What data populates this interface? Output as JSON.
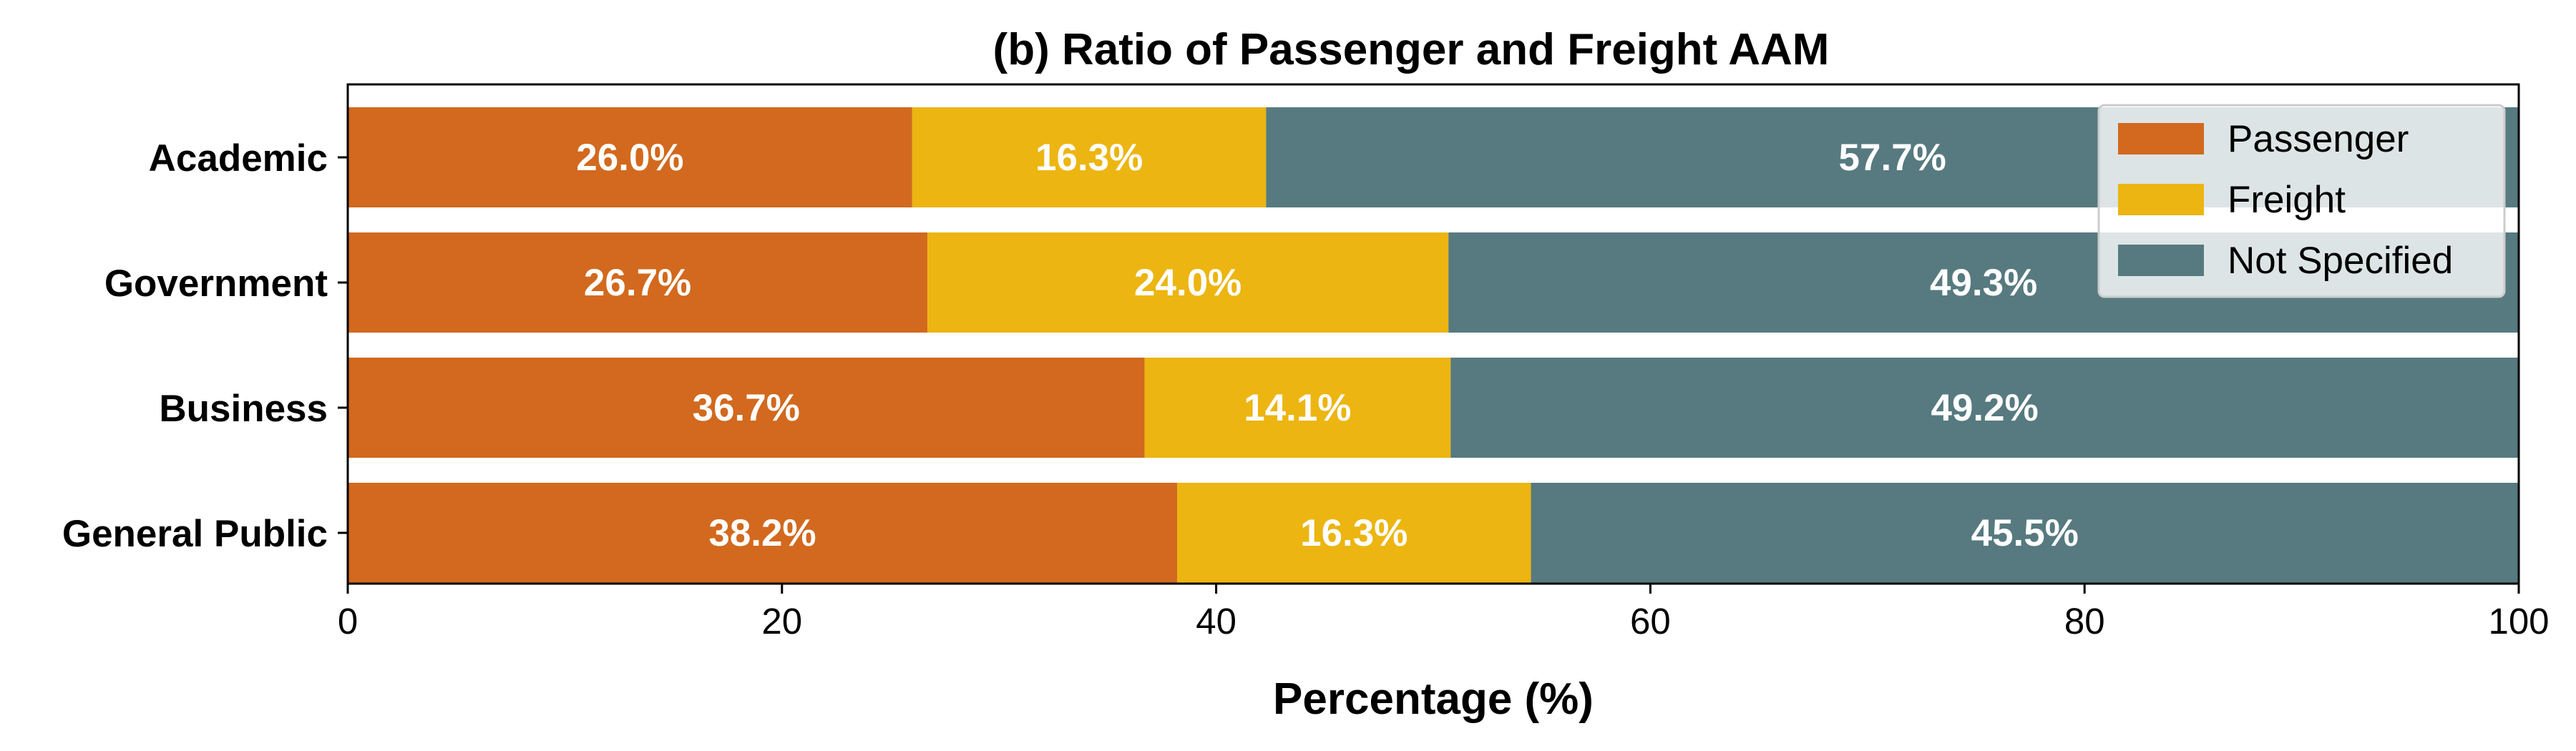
{
  "chart_data": {
    "type": "bar",
    "orientation": "horizontal",
    "stacked": true,
    "title": "(b) Ratio of Passenger and Freight AAM",
    "xlabel": "Percentage (%)",
    "ylabel": "",
    "xlim": [
      0,
      100
    ],
    "xticks": [
      0,
      20,
      40,
      60,
      80,
      100
    ],
    "xtick_labels": [
      "0",
      "20",
      "40",
      "60",
      "80",
      "100"
    ],
    "categories": [
      "Academic",
      "Government",
      "Business",
      "General Public"
    ],
    "series": [
      {
        "name": "Passenger",
        "color": "#D2691E",
        "values": [
          26.0,
          26.7,
          36.7,
          38.2
        ],
        "labels": [
          "26.0%",
          "26.7%",
          "36.7%",
          "38.2%"
        ]
      },
      {
        "name": "Freight",
        "color": "#ECB511",
        "values": [
          16.3,
          24.0,
          14.1,
          16.3
        ],
        "labels": [
          "16.3%",
          "24.0%",
          "14.1%",
          "16.3%"
        ]
      },
      {
        "name": "Not Specified",
        "color": "#567A7F",
        "values": [
          57.7,
          49.3,
          49.2,
          45.5
        ],
        "labels": [
          "57.7%",
          "49.3%",
          "49.2%",
          "45.5%"
        ]
      }
    ],
    "legend_position": "top-right",
    "grid": false
  }
}
